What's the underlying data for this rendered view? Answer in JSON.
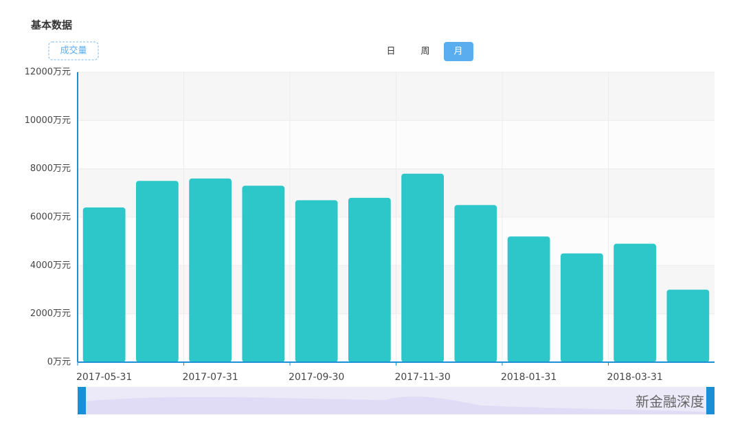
{
  "header": {
    "title": "基本数据"
  },
  "legend_tag": "成交量",
  "period_tabs": [
    "日",
    "周",
    "月"
  ],
  "active_tab": 2,
  "watermark": "新金融深度",
  "chart_data": {
    "type": "bar",
    "categories": [
      "2017-05-31",
      null,
      "2017-07-31",
      null,
      "2017-09-30",
      null,
      "2017-11-30",
      null,
      "2018-01-31",
      null,
      "2018-03-31",
      null
    ],
    "values": [
      6400,
      7500,
      7600,
      7300,
      6700,
      6800,
      7800,
      6500,
      5200,
      4500,
      4900,
      3000
    ],
    "color": "#2ec7c9",
    "ylim": [
      0,
      12000
    ],
    "yticks": [
      {
        "value": 0,
        "label": "0万元"
      },
      {
        "value": 2000,
        "label": "2000万元"
      },
      {
        "value": 4000,
        "label": "4000万元"
      },
      {
        "value": 6000,
        "label": "6000万元"
      },
      {
        "value": 8000,
        "label": "8000万元"
      },
      {
        "value": 10000,
        "label": "10000万元"
      },
      {
        "value": 12000,
        "label": "12000万元"
      }
    ],
    "grid": true
  }
}
